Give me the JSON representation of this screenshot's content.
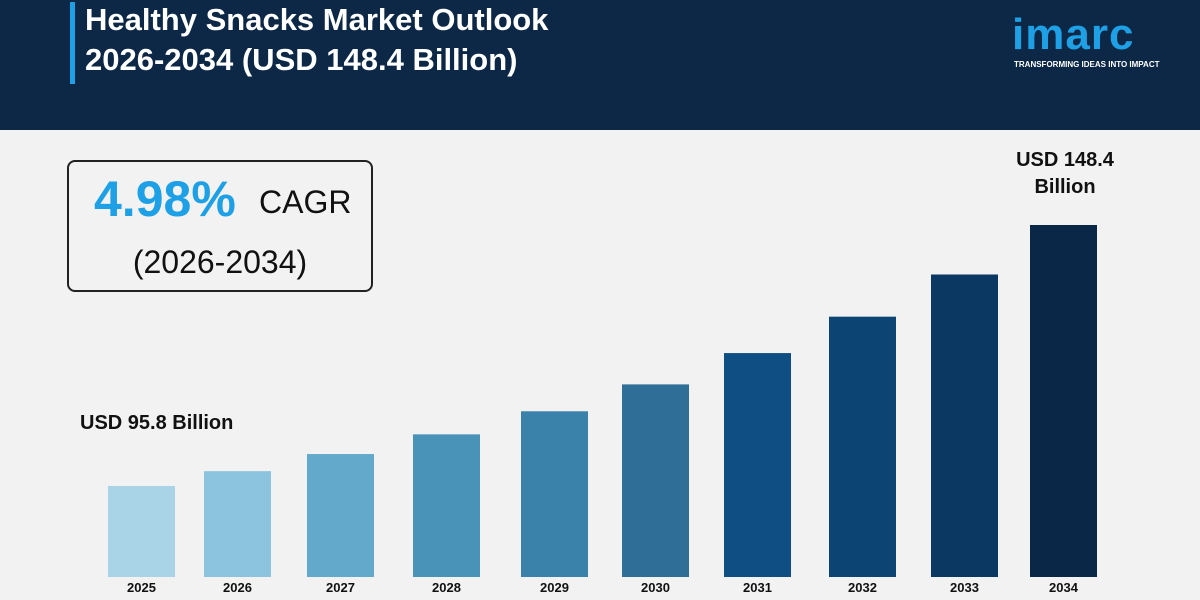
{
  "header": {
    "title_line1": "Healthy Snacks Market Outlook",
    "title_line2": "2026-2034 (USD 148.4 Billion)"
  },
  "logo": {
    "word": "imarc",
    "tagline": "TRANSFORMING IDEAS INTO IMPACT"
  },
  "cagr": {
    "value": "4.98%",
    "label": "CAGR",
    "period": "(2026-2034)"
  },
  "colors": {
    "header": "#0c2846",
    "accent": "#1ea0e6"
  },
  "chart_data": {
    "type": "bar",
    "title": "Healthy Snacks Market Outlook 2026-2034 (USD 148.4 Billion)",
    "categories": [
      "2025",
      "2026",
      "2027",
      "2028",
      "2029",
      "2030",
      "2031",
      "2032",
      "2033",
      "2034"
    ],
    "values": [
      95.8,
      100.6,
      105.6,
      110.8,
      116.3,
      122.1,
      128.2,
      134.6,
      141.3,
      148.4
    ],
    "unit": "USD Billion",
    "annotations": {
      "first": "USD 95.8 Billion",
      "last_line1": "USD 148.4",
      "last_line2": "Billion"
    },
    "bar_colors": [
      "#a9d4e8",
      "#8cc4df",
      "#63a9cb",
      "#4a93b8",
      "#3a82aa",
      "#2e6e97",
      "#0f4e82",
      "#0c4473",
      "#0b3763",
      "#0b2747"
    ],
    "grid": false,
    "legend": "none"
  }
}
